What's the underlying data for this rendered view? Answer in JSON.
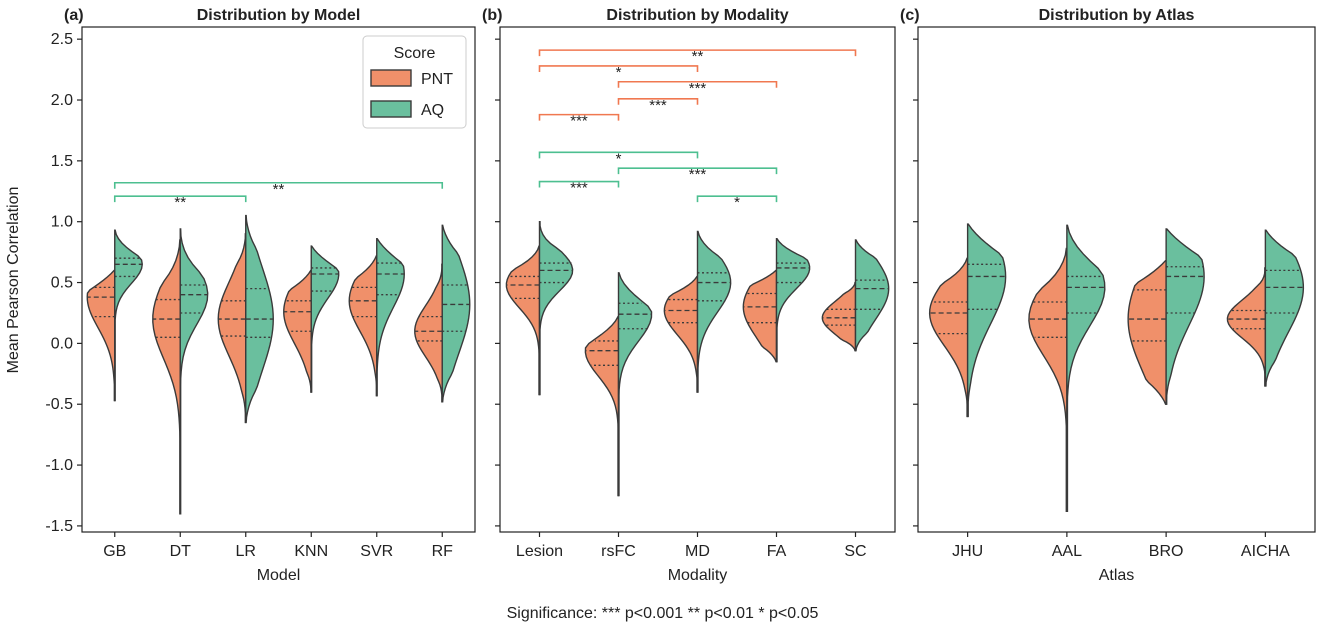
{
  "y_axis_label": "Mean Pearson Correlation",
  "footer": "Significance: *** p<0.001    ** p<0.01    *   p<0.05",
  "colors": {
    "PNT": "#f0906a",
    "AQ": "#6abf9e",
    "sig_PNT": "#f07850",
    "sig_AQ": "#4dbf90",
    "outline": "#3a3a3a"
  },
  "chart_data": [
    {
      "panel": "(a)",
      "type": "violin",
      "title": "Distribution by Model",
      "xlabel": "Model",
      "ylabel": "Mean Pearson Correlation",
      "ylim": [
        -1.55,
        2.6
      ],
      "yticks": [
        "-1.5",
        "-1.0",
        "-0.5",
        "0.0",
        "0.5",
        "1.0",
        "1.5",
        "2.0",
        "2.5"
      ],
      "legend": {
        "title": "Score",
        "entries": [
          "PNT",
          "AQ"
        ],
        "position": "top-right"
      },
      "categories": [
        "GB",
        "DT",
        "LR",
        "KNN",
        "SVR",
        "RF"
      ],
      "series": [
        {
          "name": "PNT",
          "min": [
            -0.47,
            -1.4,
            -0.65,
            -0.4,
            -0.43,
            -0.48
          ],
          "max": [
            0.6,
            0.85,
            0.9,
            0.6,
            0.72,
            0.65
          ],
          "q1": [
            0.22,
            0.05,
            0.06,
            0.1,
            0.22,
            0.02
          ],
          "median": [
            0.38,
            0.2,
            0.2,
            0.26,
            0.35,
            0.1
          ],
          "q3": [
            0.46,
            0.36,
            0.35,
            0.35,
            0.46,
            0.22
          ]
        },
        {
          "name": "AQ",
          "min": [
            -0.47,
            -1.4,
            -0.65,
            -0.4,
            -0.43,
            -0.48
          ],
          "max": [
            0.93,
            0.94,
            1.05,
            0.8,
            0.86,
            0.97
          ],
          "q1": [
            0.55,
            0.25,
            0.05,
            0.43,
            0.4,
            0.1
          ],
          "median": [
            0.65,
            0.4,
            0.2,
            0.57,
            0.57,
            0.32
          ],
          "q3": [
            0.7,
            0.48,
            0.45,
            0.62,
            0.66,
            0.48
          ]
        }
      ],
      "significance": [
        {
          "from": "GB",
          "to": "LR",
          "label": "**",
          "score": "AQ"
        },
        {
          "from": "GB",
          "to": "RF",
          "label": "**",
          "score": "AQ"
        }
      ]
    },
    {
      "panel": "(b)",
      "type": "violin",
      "title": "Distribution by Modality",
      "xlabel": "Modality",
      "ylim": [
        -1.55,
        2.6
      ],
      "categories": [
        "Lesion",
        "rsFC",
        "MD",
        "FA",
        "SC"
      ],
      "series": [
        {
          "name": "PNT",
          "min": [
            -0.42,
            -1.25,
            -0.4,
            -0.15,
            -0.06
          ],
          "max": [
            0.8,
            0.22,
            0.55,
            0.6,
            0.5
          ],
          "q1": [
            0.37,
            -0.18,
            0.17,
            0.17,
            0.15
          ],
          "median": [
            0.48,
            -0.06,
            0.27,
            0.3,
            0.21
          ],
          "q3": [
            0.55,
            0.02,
            0.36,
            0.41,
            0.28
          ]
        },
        {
          "name": "AQ",
          "min": [
            -0.42,
            -1.25,
            -0.4,
            -0.15,
            -0.06
          ],
          "max": [
            1.0,
            0.58,
            0.92,
            0.86,
            0.85
          ],
          "q1": [
            0.5,
            0.12,
            0.35,
            0.5,
            0.28
          ],
          "median": [
            0.6,
            0.24,
            0.5,
            0.62,
            0.45
          ],
          "q3": [
            0.66,
            0.33,
            0.58,
            0.66,
            0.52
          ]
        }
      ],
      "significance": [
        {
          "from": "Lesion",
          "to": "SC",
          "label": "**",
          "score": "PNT"
        },
        {
          "from": "Lesion",
          "to": "MD",
          "label": "*",
          "score": "PNT"
        },
        {
          "from": "rsFC",
          "to": "FA",
          "label": "***",
          "score": "PNT"
        },
        {
          "from": "rsFC",
          "to": "MD",
          "label": "***",
          "score": "PNT"
        },
        {
          "from": "Lesion",
          "to": "rsFC",
          "label": "***",
          "score": "PNT"
        },
        {
          "from": "Lesion",
          "to": "MD",
          "label": "*",
          "score": "AQ"
        },
        {
          "from": "rsFC",
          "to": "FA",
          "label": "***",
          "score": "AQ"
        },
        {
          "from": "Lesion",
          "to": "rsFC",
          "label": "***",
          "score": "AQ"
        },
        {
          "from": "MD",
          "to": "FA",
          "label": "*",
          "score": "AQ"
        }
      ]
    },
    {
      "panel": "(c)",
      "type": "violin",
      "title": "Distribution by Atlas",
      "xlabel": "Atlas",
      "ylim": [
        -1.55,
        2.6
      ],
      "categories": [
        "JHU",
        "AAL",
        "BRO",
        "AICHA"
      ],
      "series": [
        {
          "name": "PNT",
          "min": [
            -0.6,
            -1.38,
            -0.5,
            -0.35
          ],
          "max": [
            0.7,
            0.78,
            0.68,
            0.62
          ],
          "q1": [
            0.08,
            0.05,
            0.02,
            0.12
          ],
          "median": [
            0.25,
            0.2,
            0.2,
            0.2
          ],
          "q3": [
            0.34,
            0.34,
            0.44,
            0.27
          ]
        },
        {
          "name": "AQ",
          "min": [
            -0.6,
            -1.38,
            -0.5,
            -0.35
          ],
          "max": [
            0.98,
            0.97,
            0.94,
            0.93
          ],
          "q1": [
            0.28,
            0.25,
            0.25,
            0.25
          ],
          "median": [
            0.55,
            0.46,
            0.55,
            0.46
          ],
          "q3": [
            0.65,
            0.55,
            0.63,
            0.6
          ]
        }
      ],
      "significance": []
    }
  ]
}
